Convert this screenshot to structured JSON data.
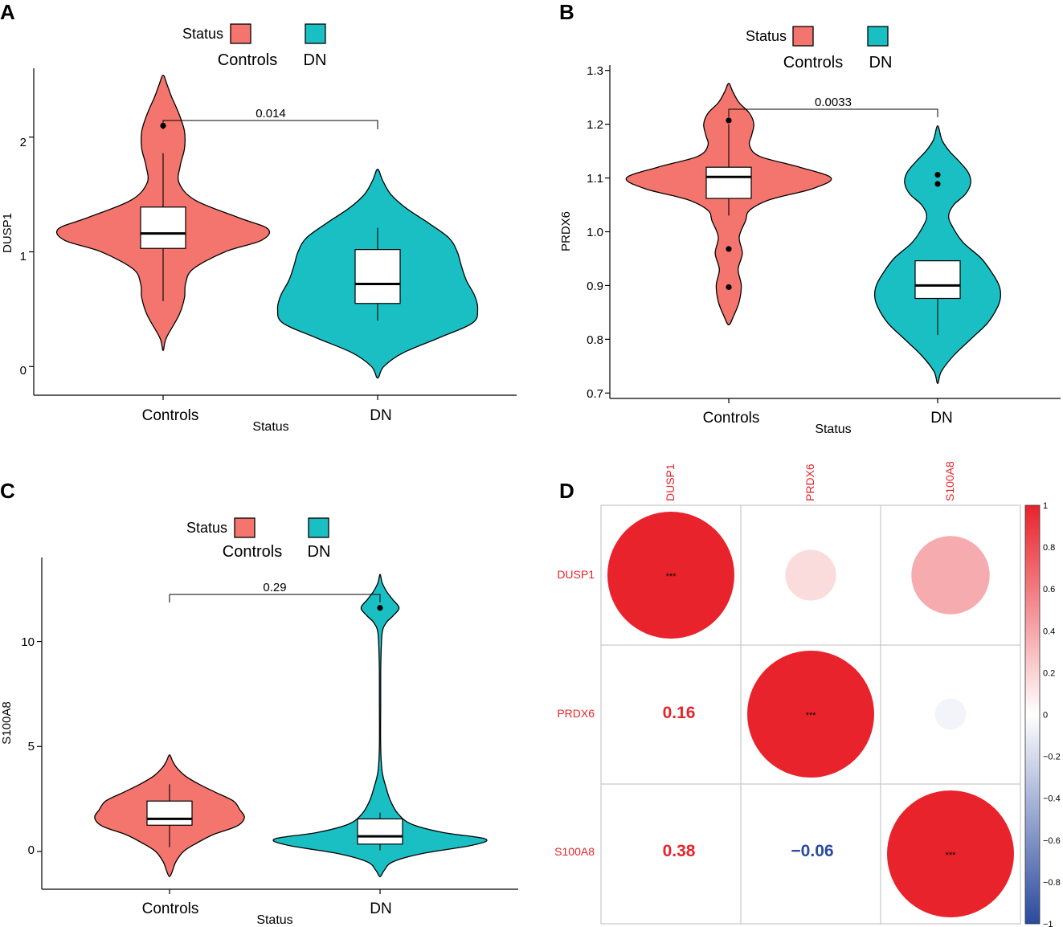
{
  "figure": {
    "colors": {
      "controls": "#F4756D",
      "dn": "#1ABFC4",
      "corr_pos": "#E8232B",
      "corr_neg": "#2A4A9E",
      "axis": "#000000",
      "grid": "#BDBDBD"
    }
  },
  "panels": [
    {
      "id": "A",
      "panel_label": "A",
      "legend": {
        "title": "Status",
        "entries": [
          "Controls",
          "DN"
        ]
      },
      "ylabel": "DUSP1",
      "xlabel": "Status",
      "pvalue": "0.014",
      "tick_labels": [
        "0",
        "1",
        "2"
      ]
    },
    {
      "id": "B",
      "panel_label": "B",
      "legend": {
        "title": "Status",
        "entries": [
          "Controls",
          "DN"
        ]
      },
      "ylabel": "PRDX6",
      "xlabel": "Status",
      "pvalue": "0.0033",
      "tick_labels": [
        "0.7",
        "0.8",
        "0.9",
        "1.0",
        "1.1",
        "1.2",
        "1.3"
      ]
    },
    {
      "id": "C",
      "panel_label": "C",
      "legend": {
        "title": "Status",
        "entries": [
          "Controls",
          "DN"
        ]
      },
      "ylabel": "S100A8",
      "xlabel": "Status",
      "pvalue": "0.29",
      "tick_labels": [
        "0",
        "5",
        "10"
      ]
    },
    {
      "id": "D",
      "panel_label": "D",
      "col_labels": [
        "DUSP1",
        "PRDX6",
        "S100A8"
      ],
      "row_labels": [
        "DUSP1",
        "PRDX6",
        "S100A8"
      ],
      "lower_values": [
        "0.16",
        "0.38",
        "−0.06"
      ],
      "significance": "***",
      "colorbar_ticks": [
        "1",
        "0.8",
        "0.6",
        "0.4",
        "0.2",
        "0",
        "−0.2",
        "−0.4",
        "−0.6",
        "−0.8",
        "−1"
      ]
    }
  ],
  "chart_data": [
    {
      "type": "violin",
      "panel": "A",
      "categories": [
        "Controls",
        "DN"
      ],
      "xlabel": "Status",
      "ylabel": "DUSP1",
      "ylim": [
        -0.25,
        2.6
      ],
      "yticks": [
        0,
        1,
        2
      ],
      "comparison": {
        "groups": [
          "Controls",
          "DN"
        ],
        "p": 0.014,
        "y": 2.18
      },
      "series": [
        {
          "name": "Controls",
          "box": {
            "lower_whisker": 0.57,
            "q1": 1.03,
            "median": 1.16,
            "q3": 1.39,
            "upper_whisker": 1.86
          },
          "outliers": [
            2.1
          ],
          "density": {
            "y": [
              0.14,
              0.25,
              0.45,
              0.6,
              0.72,
              0.85,
              1.0,
              1.1,
              1.2,
              1.3,
              1.45,
              1.6,
              1.75,
              1.9,
              2.05,
              2.2,
              2.35,
              2.45,
              2.54
            ],
            "w": [
              0,
              0.03,
              0.15,
              0.2,
              0.21,
              0.28,
              0.58,
              0.92,
              0.98,
              0.7,
              0.3,
              0.15,
              0.16,
              0.2,
              0.2,
              0.15,
              0.08,
              0.04,
              0
            ]
          }
        },
        {
          "name": "DN",
          "box": {
            "lower_whisker": 0.4,
            "q1": 0.55,
            "median": 0.72,
            "q3": 1.02,
            "upper_whisker": 1.21
          },
          "outliers": [],
          "density": {
            "y": [
              -0.1,
              0.0,
              0.12,
              0.25,
              0.38,
              0.5,
              0.62,
              0.75,
              0.88,
              1.0,
              1.12,
              1.25,
              1.38,
              1.5,
              1.62,
              1.72
            ],
            "w": [
              0,
              0.06,
              0.25,
              0.6,
              0.93,
              0.98,
              0.95,
              0.87,
              0.82,
              0.78,
              0.7,
              0.5,
              0.28,
              0.13,
              0.05,
              0
            ]
          }
        }
      ]
    },
    {
      "type": "violin",
      "panel": "B",
      "categories": [
        "Controls",
        "DN"
      ],
      "xlabel": "Status",
      "ylabel": "PRDX6",
      "ylim": [
        0.69,
        1.31
      ],
      "yticks": [
        0.7,
        0.8,
        0.9,
        1.0,
        1.1,
        1.2,
        1.3
      ],
      "comparison": {
        "groups": [
          "Controls",
          "DN"
        ],
        "p": 0.0033,
        "y": 1.227
      },
      "series": [
        {
          "name": "Controls",
          "box": {
            "lower_whisker": 1.03,
            "q1": 1.062,
            "median": 1.102,
            "q3": 1.12,
            "upper_whisker": 1.2
          },
          "outliers": [
            1.207,
            0.968,
            0.897
          ],
          "density": {
            "y": [
              0.827,
              0.845,
              0.87,
              0.9,
              0.93,
              0.96,
              0.99,
              1.02,
              1.04,
              1.06,
              1.08,
              1.1,
              1.12,
              1.14,
              1.16,
              1.18,
              1.2,
              1.22,
              1.24,
              1.26,
              1.276
            ],
            "w": [
              0,
              0.05,
              0.1,
              0.12,
              0.09,
              0.13,
              0.1,
              0.16,
              0.2,
              0.4,
              0.8,
              0.98,
              0.68,
              0.3,
              0.2,
              0.22,
              0.24,
              0.2,
              0.1,
              0.04,
              0
            ]
          }
        },
        {
          "name": "DN",
          "box": {
            "lower_whisker": 0.808,
            "q1": 0.876,
            "median": 0.9,
            "q3": 0.946,
            "upper_whisker": 0.946
          },
          "outliers": [
            1.106,
            1.089
          ],
          "density": {
            "y": [
              0.718,
              0.74,
              0.77,
              0.8,
              0.83,
              0.86,
              0.88,
              0.9,
              0.92,
              0.95,
              0.98,
              1.01,
              1.03,
              1.05,
              1.07,
              1.09,
              1.11,
              1.13,
              1.15,
              1.17,
              1.197
            ],
            "w": [
              0,
              0.05,
              0.22,
              0.45,
              0.68,
              0.82,
              0.86,
              0.84,
              0.76,
              0.6,
              0.35,
              0.2,
              0.15,
              0.22,
              0.38,
              0.45,
              0.42,
              0.3,
              0.16,
              0.06,
              0
            ]
          }
        }
      ]
    },
    {
      "type": "violin",
      "panel": "C",
      "categories": [
        "Controls",
        "DN"
      ],
      "xlabel": "Status",
      "ylabel": "S100A8",
      "ylim": [
        -1.8,
        14.0
      ],
      "yticks": [
        0,
        5,
        10
      ],
      "comparison": {
        "groups": [
          "Controls",
          "DN"
        ],
        "p": 0.29,
        "y": 12.2
      },
      "series": [
        {
          "name": "Controls",
          "box": {
            "lower_whisker": 0.2,
            "q1": 1.25,
            "median": 1.55,
            "q3": 2.4,
            "upper_whisker": 3.2
          },
          "outliers": [],
          "density": {
            "y": [
              -1.2,
              -0.9,
              -0.5,
              0.0,
              0.4,
              0.8,
              1.2,
              1.6,
              2.0,
              2.4,
              2.8,
              3.2,
              3.6,
              4.0,
              4.3,
              4.6
            ],
            "w": [
              0,
              0.04,
              0.08,
              0.18,
              0.35,
              0.56,
              0.86,
              0.96,
              0.9,
              0.82,
              0.6,
              0.38,
              0.2,
              0.09,
              0.04,
              0
            ]
          }
        },
        {
          "name": "DN",
          "box": {
            "lower_whisker": 0.05,
            "q1": 0.35,
            "median": 0.72,
            "q3": 1.55,
            "upper_whisker": 1.85
          },
          "outliers": [
            11.6
          ],
          "density": {
            "y": [
              -1.2,
              -0.9,
              -0.5,
              -0.1,
              0.3,
              0.6,
              0.9,
              1.3,
              1.8,
              2.4,
              3.0,
              3.8,
              5.0,
              7.0,
              9.0,
              10.4,
              10.9,
              11.2,
              11.6,
              12.0,
              12.4,
              12.8,
              13.2
            ],
            "w": [
              0,
              0.04,
              0.12,
              0.4,
              0.88,
              1.0,
              0.6,
              0.3,
              0.17,
              0.1,
              0.06,
              0.02,
              0.006,
              0.006,
              0.008,
              0.02,
              0.06,
              0.12,
              0.18,
              0.12,
              0.06,
              0.02,
              0
            ]
          }
        }
      ]
    },
    {
      "type": "heatmap",
      "panel": "D",
      "title": "",
      "variables": [
        "DUSP1",
        "PRDX6",
        "S100A8"
      ],
      "correlations": [
        [
          1.0,
          0.16,
          0.38
        ],
        [
          0.16,
          1.0,
          -0.06
        ],
        [
          0.38,
          -0.06,
          1.0
        ]
      ],
      "significance": [
        [
          "***",
          "",
          ""
        ],
        [
          "",
          "***",
          ""
        ],
        [
          "",
          "",
          "***"
        ]
      ],
      "colorbar_range": [
        -1,
        1
      ],
      "colorbar_ticks": [
        1,
        0.8,
        0.6,
        0.4,
        0.2,
        0,
        -0.2,
        -0.4,
        -0.6,
        -0.8,
        -1
      ]
    }
  ]
}
